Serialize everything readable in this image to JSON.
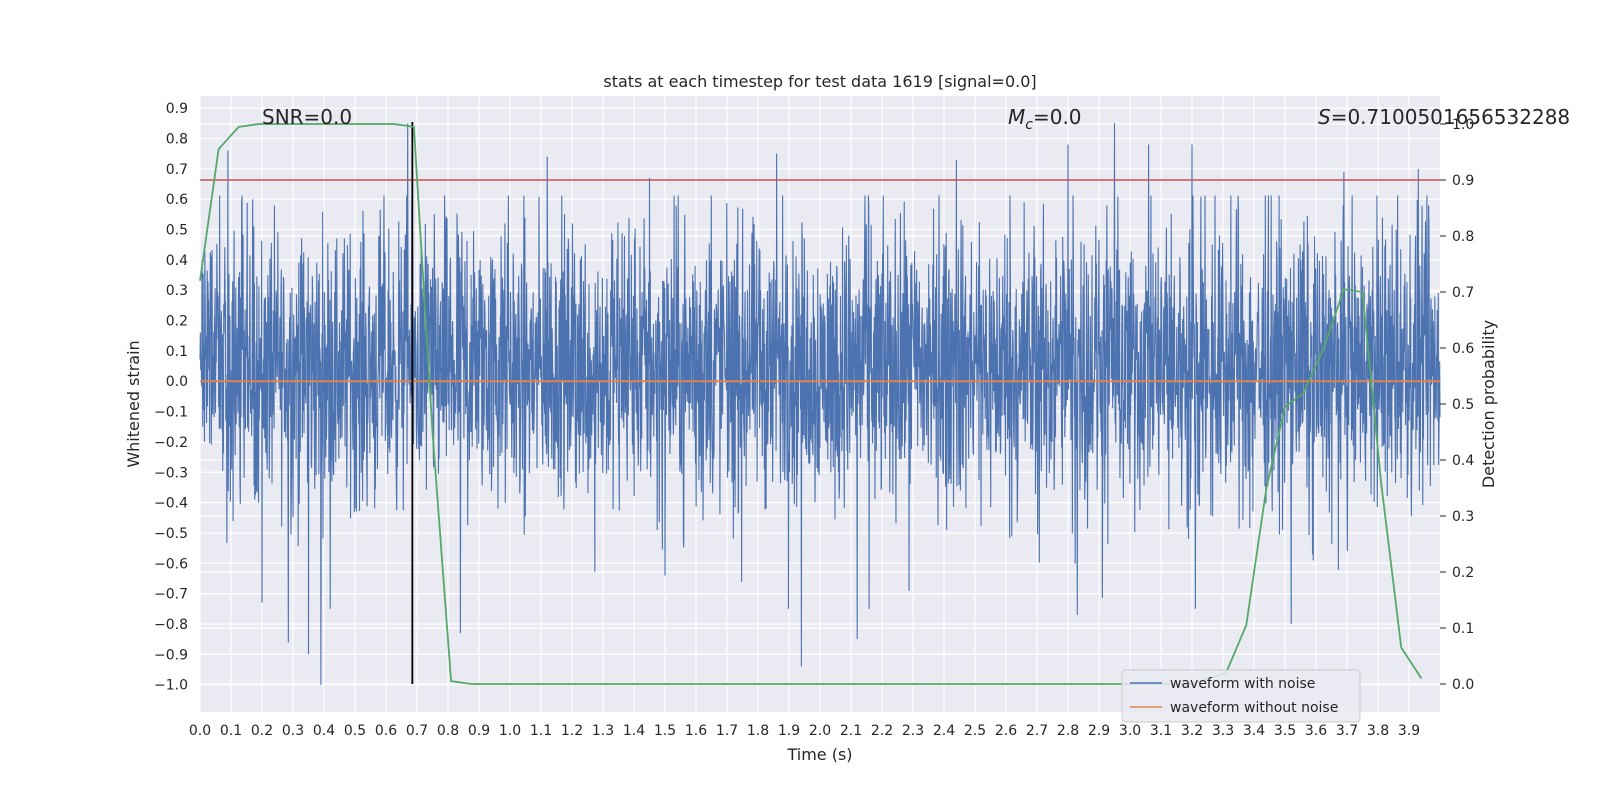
{
  "chart_data": {
    "type": "line",
    "title": "stats at each timestep for test data 1619 [signal=0.0]",
    "xlabel": "Time (s)",
    "ylabel": "Whitened strain",
    "y2label": "Detection probability",
    "xlim": [
      0.0,
      4.0
    ],
    "ylim": [
      -1.09,
      0.94
    ],
    "y2lim": [
      -0.05,
      1.05
    ],
    "xticks": [
      "0.0",
      "0.1",
      "0.2",
      "0.3",
      "0.4",
      "0.5",
      "0.6",
      "0.7",
      "0.8",
      "0.9",
      "1.0",
      "1.1",
      "1.2",
      "1.3",
      "1.4",
      "1.5",
      "1.6",
      "1.7",
      "1.8",
      "1.9",
      "2.0",
      "2.1",
      "2.2",
      "2.3",
      "2.4",
      "2.5",
      "2.6",
      "2.7",
      "2.8",
      "2.9",
      "3.0",
      "3.1",
      "3.2",
      "3.3",
      "3.4",
      "3.5",
      "3.6",
      "3.7",
      "3.8",
      "3.9"
    ],
    "yticks": [
      "0.9",
      "0.8",
      "0.7",
      "0.6",
      "0.5",
      "0.4",
      "0.3",
      "0.2",
      "0.1",
      "0.0",
      "−0.1",
      "−0.2",
      "−0.3",
      "−0.4",
      "−0.5",
      "−0.6",
      "−0.7",
      "−0.8",
      "−0.9",
      "−1.0"
    ],
    "y2ticks": [
      "0.0",
      "0.1",
      "0.2",
      "0.3",
      "0.4",
      "0.5",
      "0.6",
      "0.7",
      "0.8",
      "0.9",
      "1.0"
    ],
    "grid": true,
    "legend_position": "lower-right",
    "annotations": {
      "snr": "SNR=0.0",
      "mc_symbol": "M",
      "mc_sub": "c",
      "mc_value": "=0.0",
      "s_symbol": "S",
      "s_value": "=0.7100501656532288"
    },
    "threshold": {
      "y2": 0.9,
      "color": "#c44e52"
    },
    "vertical_marker": {
      "x": 0.685,
      "color": "#000000"
    },
    "noise_envelope": {
      "x_range": [
        0.0,
        4.0
      ],
      "typical_range": [
        -0.3,
        0.5
      ],
      "min": -1.0,
      "max": 0.85
    },
    "noise_spikes": [
      [
        0.09,
        0.76
      ],
      [
        0.2,
        -0.73
      ],
      [
        0.285,
        -0.86
      ],
      [
        0.35,
        -0.9
      ],
      [
        0.39,
        -1.0
      ],
      [
        0.67,
        0.85
      ],
      [
        0.84,
        -0.83
      ],
      [
        1.12,
        0.74
      ],
      [
        1.45,
        0.67
      ],
      [
        1.5,
        -0.64
      ],
      [
        1.86,
        0.75
      ],
      [
        1.94,
        -0.94
      ],
      [
        2.12,
        -0.85
      ],
      [
        2.44,
        0.73
      ],
      [
        2.8,
        0.78
      ],
      [
        2.83,
        -0.77
      ],
      [
        2.95,
        0.85
      ],
      [
        3.06,
        0.78
      ],
      [
        3.2,
        0.78
      ],
      [
        3.52,
        -0.8
      ],
      [
        3.69,
        0.69
      ],
      [
        3.93,
        0.7
      ]
    ],
    "series": [
      {
        "name": "waveform with noise",
        "color": "#4c72b0",
        "axis": "left",
        "style": "noise"
      },
      {
        "name": "waveform without noise",
        "color": "#dd8452",
        "axis": "left",
        "x": [
          0.0,
          4.0
        ],
        "y": [
          0.0,
          0.0
        ]
      },
      {
        "color": "#55a868",
        "axis": "right",
        "x": [
          0.0,
          0.06,
          0.125,
          0.19,
          0.25,
          0.31,
          0.375,
          0.44,
          0.5,
          0.56,
          0.625,
          0.69,
          0.75,
          0.81,
          0.875,
          0.94,
          1.0,
          1.5,
          2.0,
          2.5,
          3.0,
          3.2,
          3.31,
          3.375,
          3.44,
          3.5,
          3.56,
          3.625,
          3.69,
          3.75,
          3.81,
          3.875,
          3.94
        ],
        "y": [
          0.72,
          0.955,
          0.995,
          1.0,
          1.0,
          1.0,
          1.0,
          1.0,
          1.0,
          1.0,
          1.0,
          0.995,
          0.45,
          0.005,
          0.0,
          0.0,
          0.0,
          0.0,
          0.0,
          0.0,
          0.0,
          0.0,
          0.02,
          0.105,
          0.35,
          0.495,
          0.52,
          0.6,
          0.705,
          0.7,
          0.36,
          0.065,
          0.01
        ]
      }
    ]
  }
}
